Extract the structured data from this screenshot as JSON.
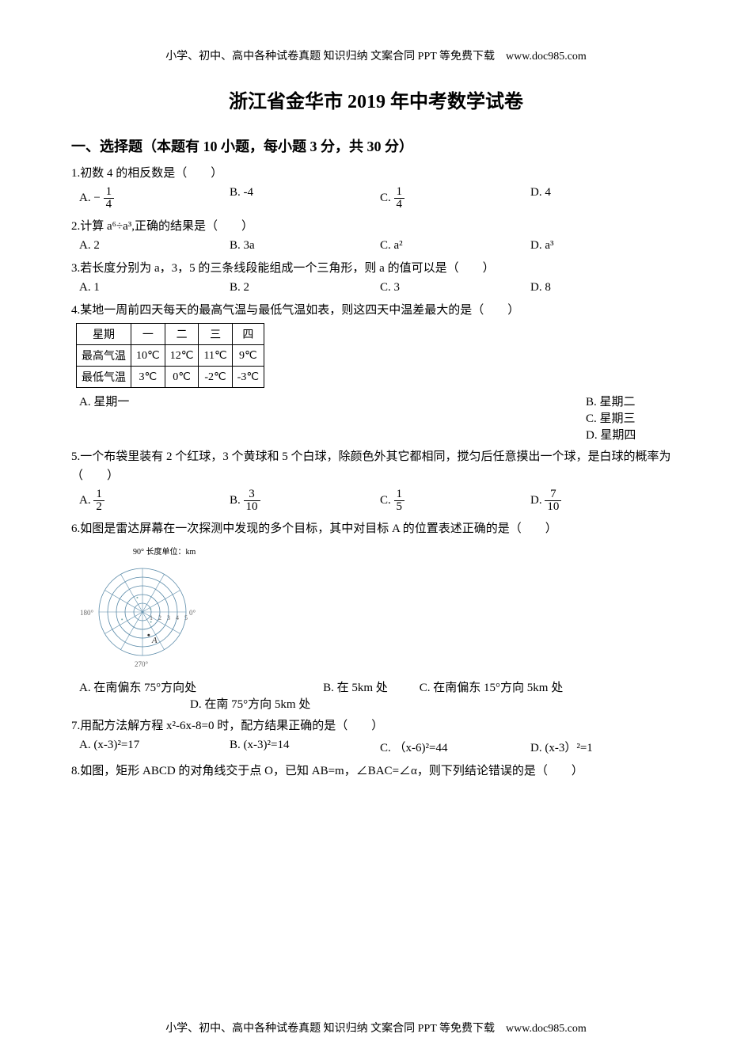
{
  "header_text": "小学、初中、高中各种试卷真题 知识归纳 文案合同 PPT 等免费下载　www.doc985.com",
  "footer_text": "小学、初中、高中各种试卷真题 知识归纳 文案合同 PPT 等免费下载　www.doc985.com",
  "title": "浙江省金华市 2019 年中考数学试卷",
  "section1": "一、选择题（本题有 10 小题，每小题 3 分，共 30 分）",
  "q1": {
    "text": "1.初数 4 的相反数是（　　）",
    "A_prefix": "A. ",
    "A_minus": "−",
    "A_num": "1",
    "A_den": "4",
    "B": "B. -4",
    "C_prefix": "C. ",
    "C_num": "1",
    "C_den": "4",
    "D": "D. 4"
  },
  "q2": {
    "text": "2.计算 a⁶÷a³,正确的结果是（　　）",
    "A": "A. 2",
    "B": "B. 3a",
    "C": "C. a²",
    "D": "D. a³"
  },
  "q3": {
    "text": "3.若长度分别为 a，3，5 的三条线段能组成一个三角形，则 a 的值可以是（　　）",
    "A": "A. 1",
    "B": "B. 2",
    "C": "C. 3",
    "D": "D. 8"
  },
  "q4": {
    "text": "4.某地一周前四天每天的最高气温与最低气温如表，则这四天中温差最大的是（　　）",
    "headers": [
      "星期",
      "一",
      "二",
      "三",
      "四"
    ],
    "row_hi_label": "最高气温",
    "row_hi": [
      "10℃",
      "12℃",
      "11℃",
      "9℃"
    ],
    "row_lo_label": "最低气温",
    "row_lo": [
      "3℃",
      "0℃",
      "-2℃",
      "-3℃"
    ],
    "A": "A. 星期一",
    "B": "B. 星期二",
    "C": "C. 星期三",
    "D": "D. 星期四"
  },
  "q5": {
    "text": "5.一个布袋里装有 2 个红球，3 个黄球和 5 个白球，除颜色外其它都相同，搅匀后任意摸出一个球，是白球的概率为（　　）",
    "A_prefix": "A. ",
    "A_num": "1",
    "A_den": "2",
    "B_prefix": "B. ",
    "B_num": "3",
    "B_den": "10",
    "C_prefix": "C. ",
    "C_num": "1",
    "C_den": "5",
    "D_prefix": "D. ",
    "D_num": "7",
    "D_den": "10"
  },
  "q6": {
    "text": "6.如图是雷达屏幕在一次探测中发现的多个目标，其中对目标 A 的位置表述正确的是（　　）",
    "radar": {
      "unit_label": "90° 长度单位：km",
      "ticks": [
        "1",
        "2",
        "3",
        "4",
        "5"
      ],
      "angles": {
        "left": "180°",
        "right": "0°",
        "bottom": "270°"
      },
      "point_label": "A",
      "circle_color": "#5a8aa8",
      "line_color": "#5a8aa8",
      "tick_color": "#666666",
      "point_color": "#333333"
    },
    "A": "A. 在南偏东 75°方向处",
    "B": "B. 在 5km 处",
    "C": "C. 在南偏东 15°方向 5km 处",
    "D": "D. 在南 75°方向 5km 处"
  },
  "q7": {
    "text": "7.用配方法解方程 x²-6x-8=0 时，配方结果正确的是（　　）",
    "A": "A. (x-3)²=17",
    "B": "B. (x-3)²=14",
    "C": "C. （x-6)²=44",
    "D": "D. (x-3）²=1"
  },
  "q8": {
    "text": "8.如图，矩形 ABCD 的对角线交于点 O，已知 AB=m，∠BAC=∠α，则下列结论错误的是（　　）"
  }
}
